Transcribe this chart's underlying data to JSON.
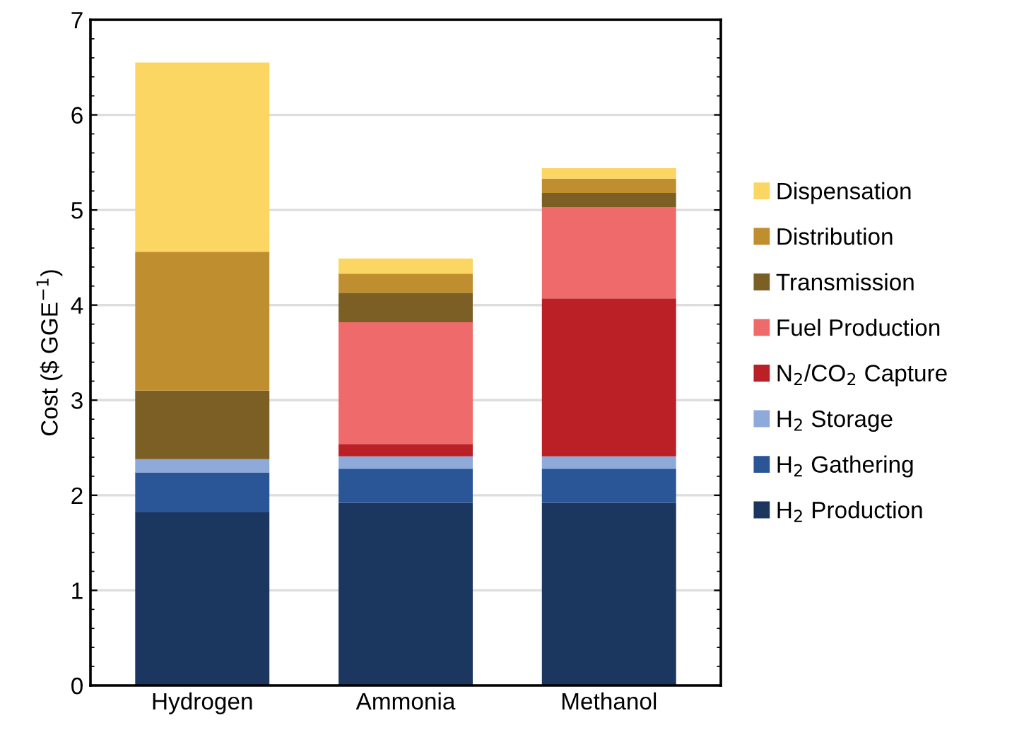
{
  "chart_data": {
    "type": "bar",
    "stacked": true,
    "ylabel": "Cost ($ GGE$^{−1}$)",
    "categories": [
      "Hydrogen",
      "Ammonia",
      "Methanol"
    ],
    "series": [
      {
        "name": "H$_{2}$ Production",
        "color": "#1b365f",
        "values": [
          1.82,
          1.92,
          1.92
        ]
      },
      {
        "name": "H$_{2}$ Gathering",
        "color": "#2a5597",
        "values": [
          0.42,
          0.36,
          0.36
        ]
      },
      {
        "name": "H$_{2}$ Storage",
        "color": "#8eaadb",
        "values": [
          0.14,
          0.13,
          0.13
        ]
      },
      {
        "name": "N$_{2}$/CO$_{2}$ Capture",
        "color": "#bb2026",
        "values": [
          0,
          0.13,
          1.66
        ]
      },
      {
        "name": "Fuel Production",
        "color": "#ef6a6a",
        "values": [
          0,
          1.28,
          0.96
        ]
      },
      {
        "name": "Transmission",
        "color": "#7b5f25",
        "values": [
          0.72,
          0.31,
          0.15
        ]
      },
      {
        "name": "Distribution",
        "color": "#bf8f2f",
        "values": [
          1.46,
          0.2,
          0.15
        ]
      },
      {
        "name": "Dispensation",
        "color": "#fbd662",
        "values": [
          1.99,
          0.16,
          0.11
        ]
      }
    ],
    "ylim": [
      0,
      7
    ],
    "yticks": [
      0,
      1,
      2,
      3,
      4,
      5,
      6,
      7
    ],
    "grid": "y",
    "legend": "right"
  }
}
